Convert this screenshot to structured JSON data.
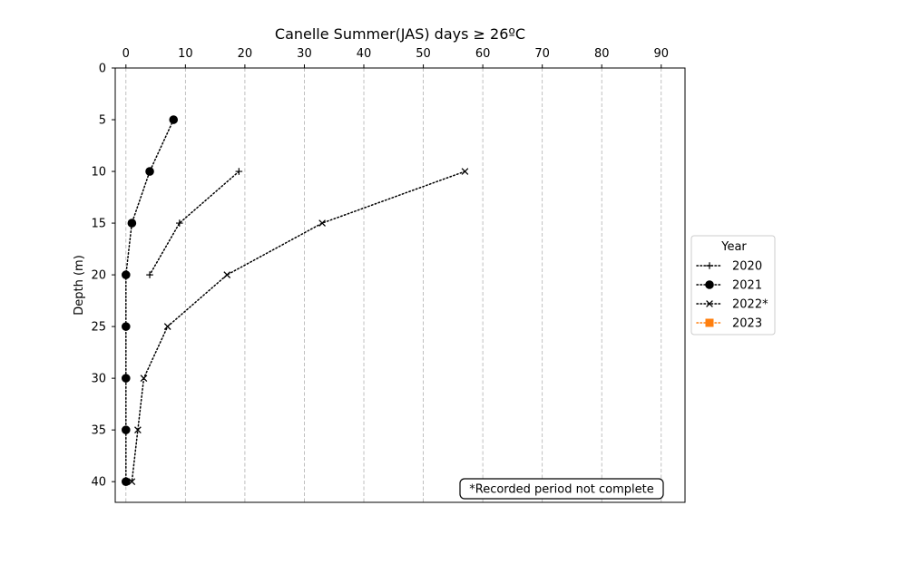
{
  "chart_data": {
    "type": "line",
    "title": "Canelle Summer(JAS) days ≥ 26ºC",
    "xlabel": "",
    "ylabel": "Depth (m)",
    "xlim": [
      -1.8,
      94
    ],
    "ylim": [
      42,
      0
    ],
    "x_ticks": [
      "0",
      "10",
      "20",
      "30",
      "40",
      "50",
      "60",
      "70",
      "80",
      "90"
    ],
    "y_ticks": [
      "0",
      "5",
      "10",
      "15",
      "20",
      "25",
      "30",
      "35",
      "40"
    ],
    "x_axis_position": "top",
    "y_inverted": true,
    "grid": "vertical dashed",
    "legend": {
      "title": "Year",
      "placement": "outside right"
    },
    "annotation": "*Recorded period not complete",
    "series": [
      {
        "name": "2020",
        "marker": "plus",
        "color": "#000000",
        "points": [
          {
            "x": 19,
            "y": 10
          },
          {
            "x": 9,
            "y": 15
          },
          {
            "x": 4,
            "y": 20
          }
        ]
      },
      {
        "name": "2021",
        "marker": "circle",
        "color": "#000000",
        "points": [
          {
            "x": 8,
            "y": 5
          },
          {
            "x": 4,
            "y": 10
          },
          {
            "x": 1,
            "y": 15
          },
          {
            "x": 0,
            "y": 20
          },
          {
            "x": 0,
            "y": 25
          },
          {
            "x": 0,
            "y": 30
          },
          {
            "x": 0,
            "y": 35
          },
          {
            "x": 0,
            "y": 40
          }
        ]
      },
      {
        "name": "2022*",
        "marker": "x",
        "color": "#000000",
        "points": [
          {
            "x": 57,
            "y": 10
          },
          {
            "x": 33,
            "y": 15
          },
          {
            "x": 17,
            "y": 20
          },
          {
            "x": 7,
            "y": 25
          },
          {
            "x": 3,
            "y": 30
          },
          {
            "x": 2,
            "y": 35
          },
          {
            "x": 1,
            "y": 40
          }
        ]
      },
      {
        "name": "2023",
        "marker": "square",
        "color": "#ff7f0e",
        "points": []
      }
    ]
  }
}
